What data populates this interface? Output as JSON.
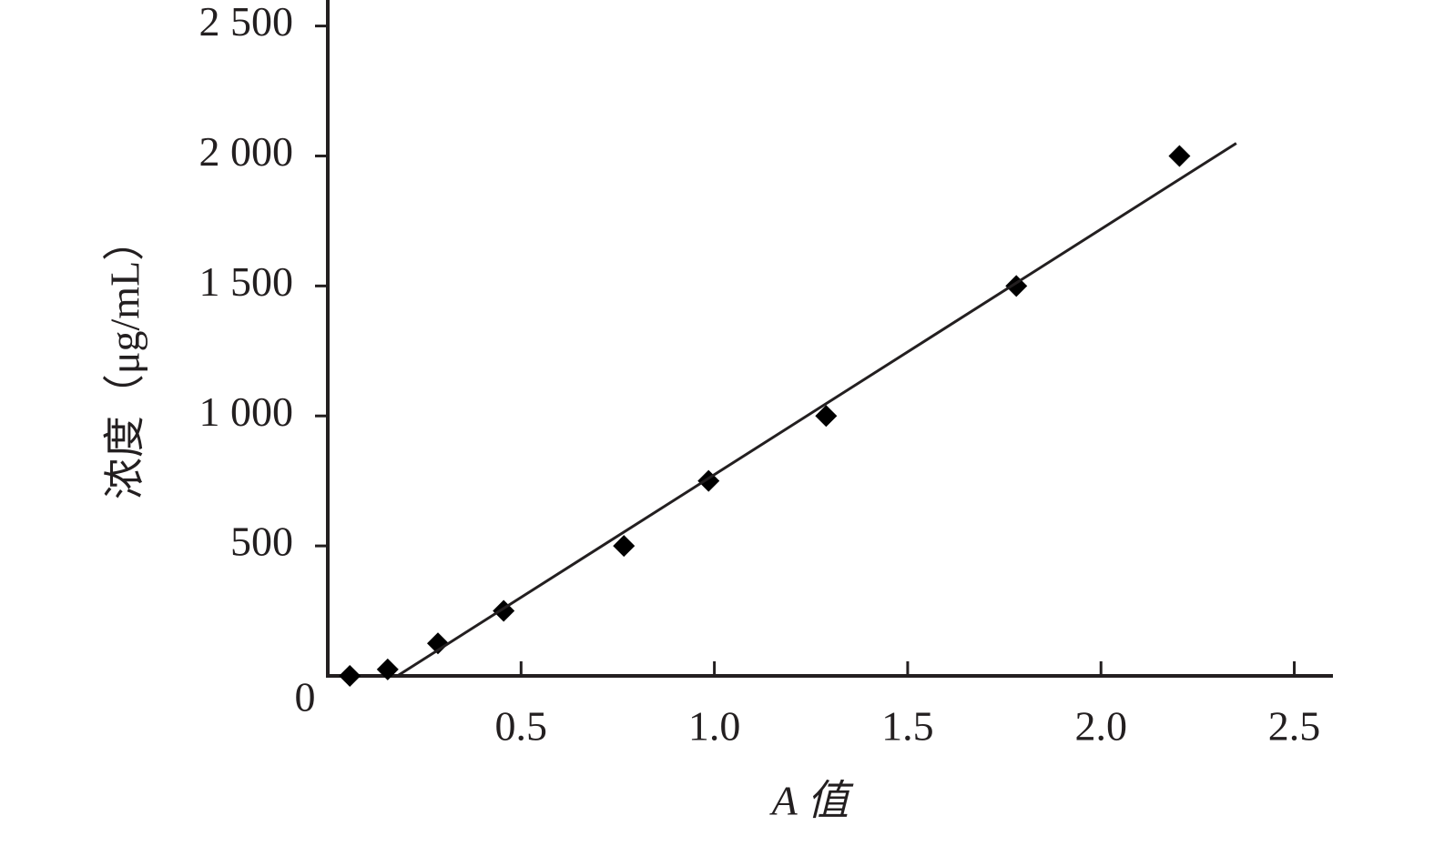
{
  "chart_data": {
    "type": "scatter",
    "xlabel": "A 值",
    "ylabel": "浓度（μg/mL）",
    "xlim": [
      0,
      2.6
    ],
    "ylim": [
      0,
      2600
    ],
    "xticks": [
      0.5,
      {
        "value": 1,
        "label": "1.0"
      },
      1.5,
      {
        "value": 2,
        "label": "2.0"
      },
      2.5
    ],
    "yticks": [
      0,
      500,
      {
        "value": 1000,
        "label": "1 000"
      },
      {
        "value": 1500,
        "label": "1 500"
      },
      {
        "value": 2000,
        "label": "2 000"
      },
      {
        "value": 2500,
        "label": "2 500"
      }
    ],
    "series": [
      {
        "color": "#000000",
        "marker": "diamond",
        "x": [
          0.057,
          0.155,
          0.285,
          0.455,
          0.766,
          0.985,
          1.289,
          1.781,
          2.203
        ],
        "values": [
          0,
          25,
          125,
          250,
          500,
          750,
          1000,
          1500,
          2000
        ]
      },
      {
        "color": "#231f20",
        "mode": "line",
        "x": [
          0.18,
          2.35
        ],
        "values": [
          0,
          2049
        ]
      }
    ]
  }
}
